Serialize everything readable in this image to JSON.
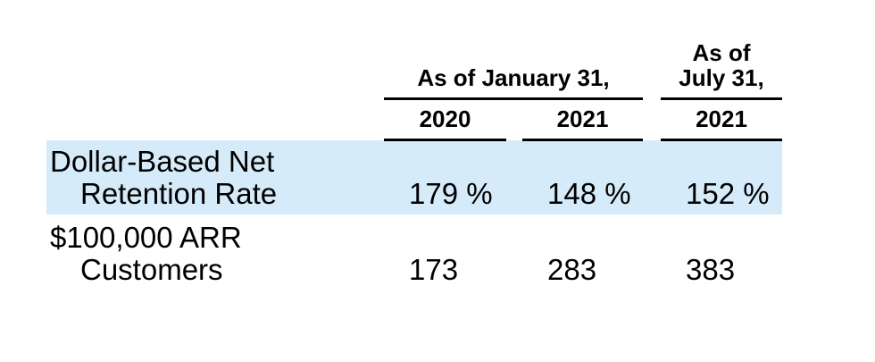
{
  "table": {
    "header": {
      "group1": "As of January 31,",
      "group2": [
        "As of",
        "July 31,"
      ],
      "years": [
        "2020",
        "2021",
        "2021"
      ]
    },
    "rows": [
      {
        "label": [
          "Dollar-Based Net",
          "Retention Rate"
        ],
        "values": [
          "179 %",
          "148 %",
          "152 %"
        ]
      },
      {
        "label": [
          "$100,000 ARR",
          "Customers"
        ],
        "values": [
          "173",
          "283",
          "383"
        ]
      }
    ]
  }
}
